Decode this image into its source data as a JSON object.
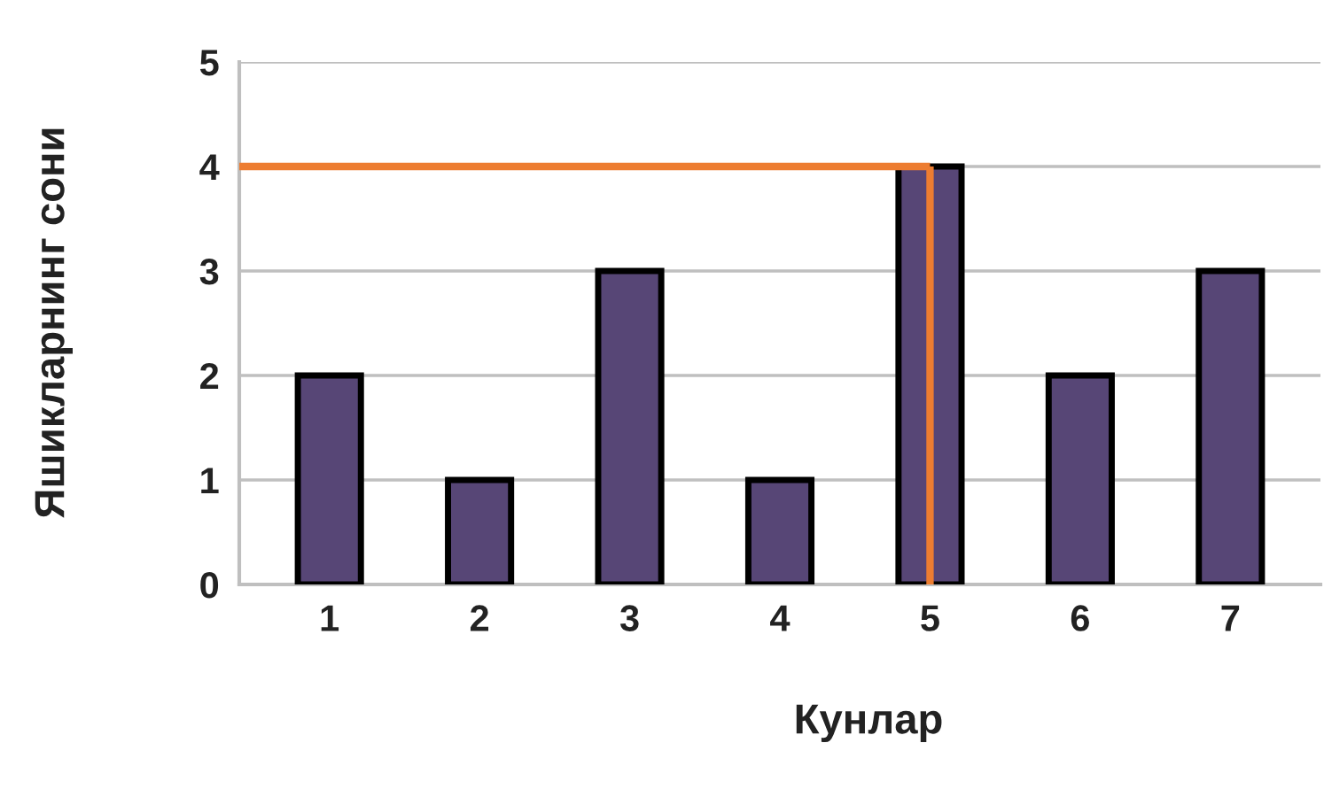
{
  "chart_data": {
    "type": "bar",
    "xlabel": "Кунлар",
    "ylabel": "Яшикларнинг сони",
    "categories": [
      "1",
      "2",
      "3",
      "4",
      "5",
      "6",
      "7"
    ],
    "values": [
      2,
      1,
      3,
      1,
      4,
      2,
      3
    ],
    "color": "#574676",
    "ylim": [
      0,
      5
    ],
    "yticks": [
      0,
      1,
      2,
      3,
      4,
      5
    ],
    "grid": "y",
    "ref_lines": [
      {
        "axis": "y",
        "value": 4,
        "color": "#ed7d31"
      },
      {
        "axis": "x",
        "value": "5",
        "color": "#ed7d31"
      }
    ]
  }
}
